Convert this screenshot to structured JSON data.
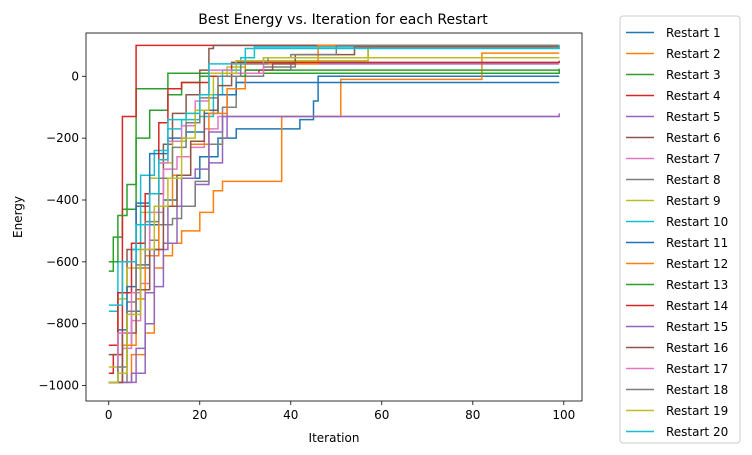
{
  "chart_data": {
    "type": "line",
    "title": "Best Energy vs. Iteration for each Restart",
    "xlabel": "Iteration",
    "ylabel": "Energy",
    "xlim": [
      -5,
      104
    ],
    "ylim": [
      -1050,
      140
    ],
    "xticks": [
      0,
      20,
      40,
      60,
      80,
      100
    ],
    "yticks": [
      -1000,
      -800,
      -600,
      -400,
      -200,
      0
    ],
    "grid": false,
    "legend_position": "outside-right",
    "colors": [
      "#1f77b4",
      "#ff7f0e",
      "#2ca02c",
      "#d62728",
      "#9467bd",
      "#8c564b",
      "#e377c2",
      "#7f7f7f",
      "#bcbd22",
      "#17becf"
    ],
    "series": [
      {
        "name": "Restart 1",
        "points": [
          [
            0,
            -990
          ],
          [
            3,
            -870
          ],
          [
            5,
            -760
          ],
          [
            7,
            -610
          ],
          [
            9,
            -480
          ],
          [
            12,
            -400
          ],
          [
            15,
            -330
          ],
          [
            20,
            -260
          ],
          [
            24,
            -200
          ],
          [
            28,
            -170
          ],
          [
            42,
            -140
          ],
          [
            45,
            -80
          ],
          [
            46,
            0
          ],
          [
            99,
            0
          ]
        ]
      },
      {
        "name": "Restart 2",
        "points": [
          [
            0,
            -990
          ],
          [
            5,
            -900
          ],
          [
            8,
            -830
          ],
          [
            10,
            -620
          ],
          [
            12,
            -580
          ],
          [
            14,
            -540
          ],
          [
            16,
            -500
          ],
          [
            20,
            -440
          ],
          [
            23,
            -370
          ],
          [
            25,
            -340
          ],
          [
            37,
            -340
          ],
          [
            38,
            -130
          ],
          [
            51,
            -130
          ],
          [
            51,
            -10
          ],
          [
            81,
            -10
          ],
          [
            82,
            75
          ],
          [
            99,
            75
          ]
        ]
      },
      {
        "name": "Restart 3",
        "points": [
          [
            0,
            -630
          ],
          [
            1,
            -520
          ],
          [
            3,
            -430
          ],
          [
            6,
            -40
          ],
          [
            12,
            -40
          ],
          [
            13,
            10
          ],
          [
            99,
            25
          ]
        ]
      },
      {
        "name": "Restart 4",
        "points": [
          [
            0,
            -960
          ],
          [
            1,
            -900
          ],
          [
            3,
            -130
          ],
          [
            5,
            -130
          ],
          [
            6,
            100
          ],
          [
            99,
            100
          ]
        ]
      },
      {
        "name": "Restart 5",
        "points": [
          [
            0,
            -990
          ],
          [
            4,
            -990
          ],
          [
            5,
            -960
          ],
          [
            8,
            -800
          ],
          [
            10,
            -680
          ],
          [
            12,
            -540
          ],
          [
            15,
            -420
          ],
          [
            19,
            -350
          ],
          [
            22,
            -280
          ],
          [
            25,
            -200
          ],
          [
            26,
            -60
          ],
          [
            28,
            -20
          ],
          [
            30,
            20
          ],
          [
            40,
            40
          ],
          [
            99,
            40
          ]
        ]
      },
      {
        "name": "Restart 6",
        "points": [
          [
            0,
            -900
          ],
          [
            2,
            -700
          ],
          [
            4,
            -560
          ],
          [
            6,
            -420
          ],
          [
            9,
            -380
          ],
          [
            12,
            -220
          ],
          [
            14,
            -120
          ],
          [
            17,
            -60
          ],
          [
            20,
            20
          ],
          [
            22,
            90
          ],
          [
            23,
            100
          ],
          [
            99,
            100
          ]
        ]
      },
      {
        "name": "Restart 7",
        "points": [
          [
            0,
            -990
          ],
          [
            3,
            -880
          ],
          [
            5,
            -790
          ],
          [
            7,
            -670
          ],
          [
            9,
            -440
          ],
          [
            12,
            -300
          ],
          [
            15,
            -260
          ],
          [
            18,
            -230
          ],
          [
            21,
            -170
          ],
          [
            24,
            -130
          ],
          [
            99,
            -130
          ]
        ]
      },
      {
        "name": "Restart 8",
        "points": [
          [
            0,
            -990
          ],
          [
            4,
            -730
          ],
          [
            6,
            -620
          ],
          [
            9,
            -530
          ],
          [
            11,
            -480
          ],
          [
            14,
            -460
          ],
          [
            16,
            -420
          ],
          [
            19,
            -340
          ],
          [
            22,
            -220
          ],
          [
            25,
            -100
          ],
          [
            28,
            0
          ],
          [
            34,
            30
          ],
          [
            41,
            60
          ],
          [
            57,
            100
          ],
          [
            99,
            100
          ]
        ]
      },
      {
        "name": "Restart 9",
        "points": [
          [
            0,
            -940
          ],
          [
            2,
            -720
          ],
          [
            4,
            -620
          ],
          [
            7,
            -440
          ],
          [
            9,
            -330
          ],
          [
            11,
            -280
          ],
          [
            14,
            -210
          ],
          [
            17,
            -120
          ],
          [
            20,
            -60
          ],
          [
            23,
            0
          ],
          [
            26,
            30
          ],
          [
            30,
            50
          ],
          [
            57,
            100
          ],
          [
            99,
            100
          ]
        ]
      },
      {
        "name": "Restart 10",
        "points": [
          [
            0,
            -760
          ],
          [
            2,
            -600
          ],
          [
            5,
            -560
          ],
          [
            7,
            -320
          ],
          [
            10,
            -240
          ],
          [
            13,
            -170
          ],
          [
            16,
            -140
          ],
          [
            20,
            -130
          ],
          [
            23,
            -60
          ],
          [
            25,
            20
          ],
          [
            29,
            60
          ],
          [
            32,
            95
          ],
          [
            99,
            95
          ]
        ]
      },
      {
        "name": "Restart 11",
        "points": [
          [
            0,
            -990
          ],
          [
            2,
            -820
          ],
          [
            4,
            -680
          ],
          [
            6,
            -410
          ],
          [
            9,
            -250
          ],
          [
            13,
            -200
          ],
          [
            17,
            -180
          ],
          [
            21,
            -120
          ],
          [
            24,
            -60
          ],
          [
            28,
            -20
          ],
          [
            99,
            -20
          ]
        ]
      },
      {
        "name": "Restart 12",
        "points": [
          [
            0,
            -990
          ],
          [
            3,
            -870
          ],
          [
            6,
            -720
          ],
          [
            8,
            -580
          ],
          [
            11,
            -420
          ],
          [
            14,
            -320
          ],
          [
            18,
            -220
          ],
          [
            22,
            -120
          ],
          [
            26,
            -40
          ],
          [
            30,
            40
          ],
          [
            46,
            100
          ],
          [
            99,
            100
          ]
        ]
      },
      {
        "name": "Restart 13",
        "points": [
          [
            0,
            -600
          ],
          [
            2,
            -450
          ],
          [
            4,
            -350
          ],
          [
            6,
            -200
          ],
          [
            9,
            -110
          ],
          [
            13,
            -60
          ],
          [
            16,
            -20
          ],
          [
            20,
            0
          ],
          [
            30,
            20
          ],
          [
            99,
            20
          ]
        ]
      },
      {
        "name": "Restart 14",
        "points": [
          [
            0,
            -870
          ],
          [
            2,
            -700
          ],
          [
            5,
            -540
          ],
          [
            8,
            -380
          ],
          [
            11,
            -150
          ],
          [
            13,
            -40
          ],
          [
            16,
            -20
          ],
          [
            22,
            0
          ],
          [
            27,
            45
          ],
          [
            99,
            50
          ]
        ]
      },
      {
        "name": "Restart 15",
        "points": [
          [
            0,
            -990
          ],
          [
            5,
            -990
          ],
          [
            6,
            -880
          ],
          [
            8,
            -700
          ],
          [
            10,
            -560
          ],
          [
            13,
            -420
          ],
          [
            16,
            -330
          ],
          [
            19,
            -300
          ],
          [
            22,
            -180
          ],
          [
            25,
            -130
          ],
          [
            99,
            -120
          ]
        ]
      },
      {
        "name": "Restart 16",
        "points": [
          [
            0,
            -990
          ],
          [
            3,
            -830
          ],
          [
            6,
            -690
          ],
          [
            9,
            -560
          ],
          [
            12,
            -420
          ],
          [
            15,
            -320
          ],
          [
            18,
            -210
          ],
          [
            21,
            -110
          ],
          [
            24,
            -30
          ],
          [
            27,
            10
          ],
          [
            33,
            20
          ],
          [
            36,
            40
          ],
          [
            41,
            70
          ],
          [
            54,
            95
          ],
          [
            99,
            95
          ]
        ]
      },
      {
        "name": "Restart 17",
        "points": [
          [
            0,
            -990
          ],
          [
            2,
            -830
          ],
          [
            5,
            -700
          ],
          [
            7,
            -560
          ],
          [
            9,
            -380
          ],
          [
            11,
            -280
          ],
          [
            13,
            -210
          ],
          [
            16,
            -160
          ],
          [
            19,
            -80
          ],
          [
            22,
            20
          ],
          [
            27,
            10
          ],
          [
            34,
            60
          ],
          [
            99,
            60
          ]
        ]
      },
      {
        "name": "Restart 18",
        "points": [
          [
            0,
            -990
          ],
          [
            2,
            -940
          ],
          [
            4,
            -760
          ],
          [
            6,
            -610
          ],
          [
            8,
            -470
          ],
          [
            11,
            -330
          ],
          [
            14,
            -230
          ],
          [
            17,
            -150
          ],
          [
            20,
            -70
          ],
          [
            24,
            0
          ],
          [
            29,
            40
          ],
          [
            35,
            60
          ],
          [
            40,
            70
          ],
          [
            50,
            100
          ],
          [
            99,
            100
          ]
        ]
      },
      {
        "name": "Restart 19",
        "points": [
          [
            0,
            -990
          ],
          [
            2,
            -960
          ],
          [
            4,
            -770
          ],
          [
            7,
            -560
          ],
          [
            10,
            -420
          ],
          [
            13,
            -330
          ],
          [
            16,
            -200
          ],
          [
            19,
            -110
          ],
          [
            22,
            10
          ],
          [
            28,
            50
          ],
          [
            34,
            60
          ],
          [
            39,
            60
          ],
          [
            99,
            60
          ]
        ]
      },
      {
        "name": "Restart 20",
        "points": [
          [
            0,
            -740
          ],
          [
            3,
            -600
          ],
          [
            6,
            -480
          ],
          [
            9,
            -380
          ],
          [
            11,
            -270
          ],
          [
            13,
            -140
          ],
          [
            17,
            -120
          ],
          [
            20,
            -60
          ],
          [
            22,
            40
          ],
          [
            30,
            90
          ],
          [
            99,
            100
          ]
        ]
      }
    ]
  }
}
